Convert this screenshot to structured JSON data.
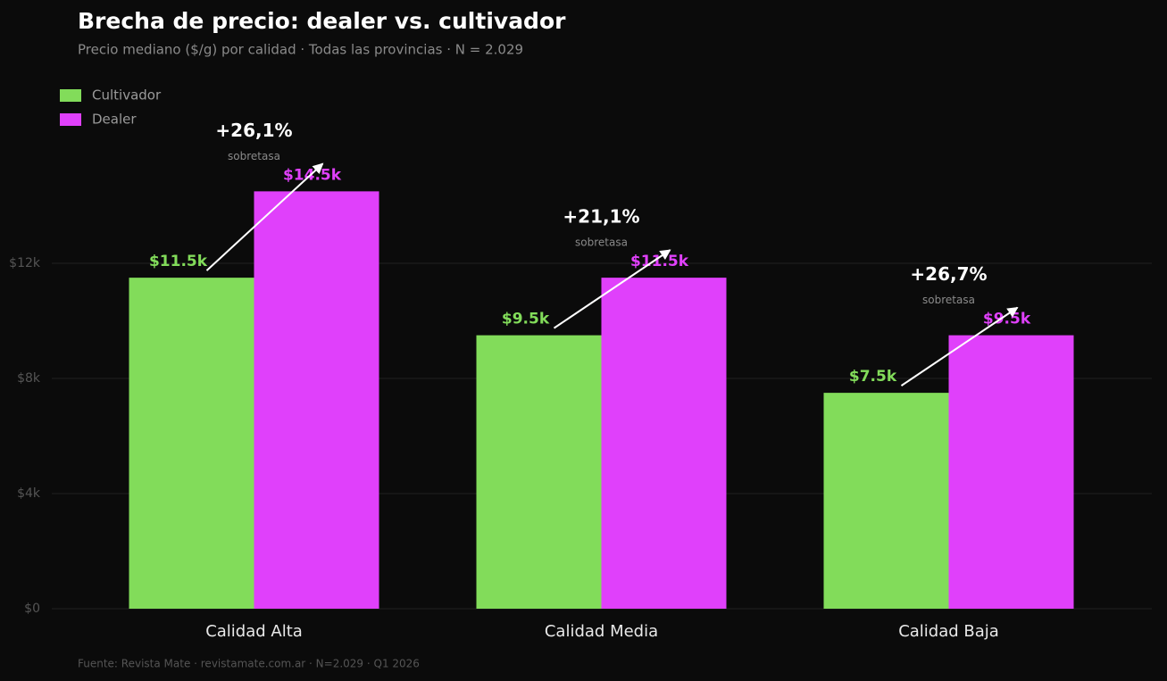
{
  "chart_data": {
    "type": "bar",
    "title": "Brecha de precio: dealer vs. cultivador",
    "subtitle": "Precio mediano ($/g) por calidad · Todas las provincias · N = 2.029",
    "categories": [
      "Calidad Alta",
      "Calidad Media",
      "Calidad Baja"
    ],
    "series": [
      {
        "name": "Cultivador",
        "color": "#82dc5a",
        "values": [
          11500,
          9500,
          7500
        ],
        "value_labels": [
          "$11.5k",
          "$9.5k",
          "$7.5k"
        ]
      },
      {
        "name": "Dealer",
        "color": "#e040fb",
        "values": [
          14500,
          11500,
          9500
        ],
        "value_labels": [
          "$14.5k",
          "$11.5k",
          "$9.5k"
        ]
      }
    ],
    "annotations": [
      {
        "text": "+26,1%",
        "note": "sobretasa"
      },
      {
        "text": "+21,1%",
        "note": "sobretasa"
      },
      {
        "text": "+26,7%",
        "note": "sobretasa"
      }
    ],
    "ylim": [
      0,
      18000
    ],
    "yticks": [
      {
        "value": 0,
        "label": "$0"
      },
      {
        "value": 4000,
        "label": "$4k"
      },
      {
        "value": 8000,
        "label": "$8k"
      },
      {
        "value": 12000,
        "label": "$12k"
      }
    ],
    "grid": true,
    "legend": "top-left",
    "source": "Fuente: Revista Mate · revistamate.com.ar · N=2.029 · Q1 2026"
  }
}
